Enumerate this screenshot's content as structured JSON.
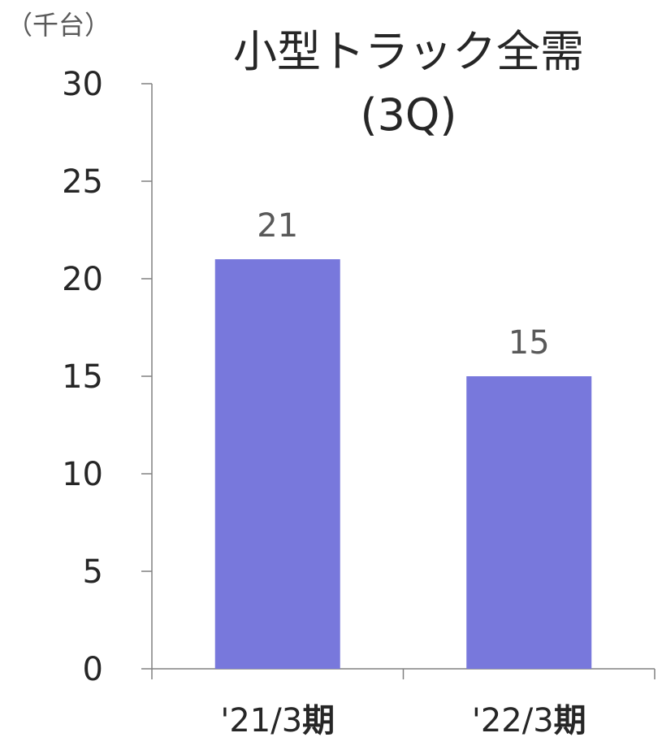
{
  "chart_data": {
    "type": "bar",
    "unit_label": "（千台）",
    "title_lines": [
      "小型トラック全需",
      "(3Q)"
    ],
    "categories": [
      {
        "text": "'21/3",
        "suffix": "期"
      },
      {
        "text": "'22/3",
        "suffix": "期"
      }
    ],
    "values": [
      21,
      15
    ],
    "data_labels": [
      "21",
      "15"
    ],
    "ylim": [
      0,
      30
    ],
    "yticks": [
      0,
      5,
      10,
      15,
      20,
      25,
      30
    ],
    "bar_color": "#7878DC",
    "grid": false,
    "legend": "none"
  }
}
